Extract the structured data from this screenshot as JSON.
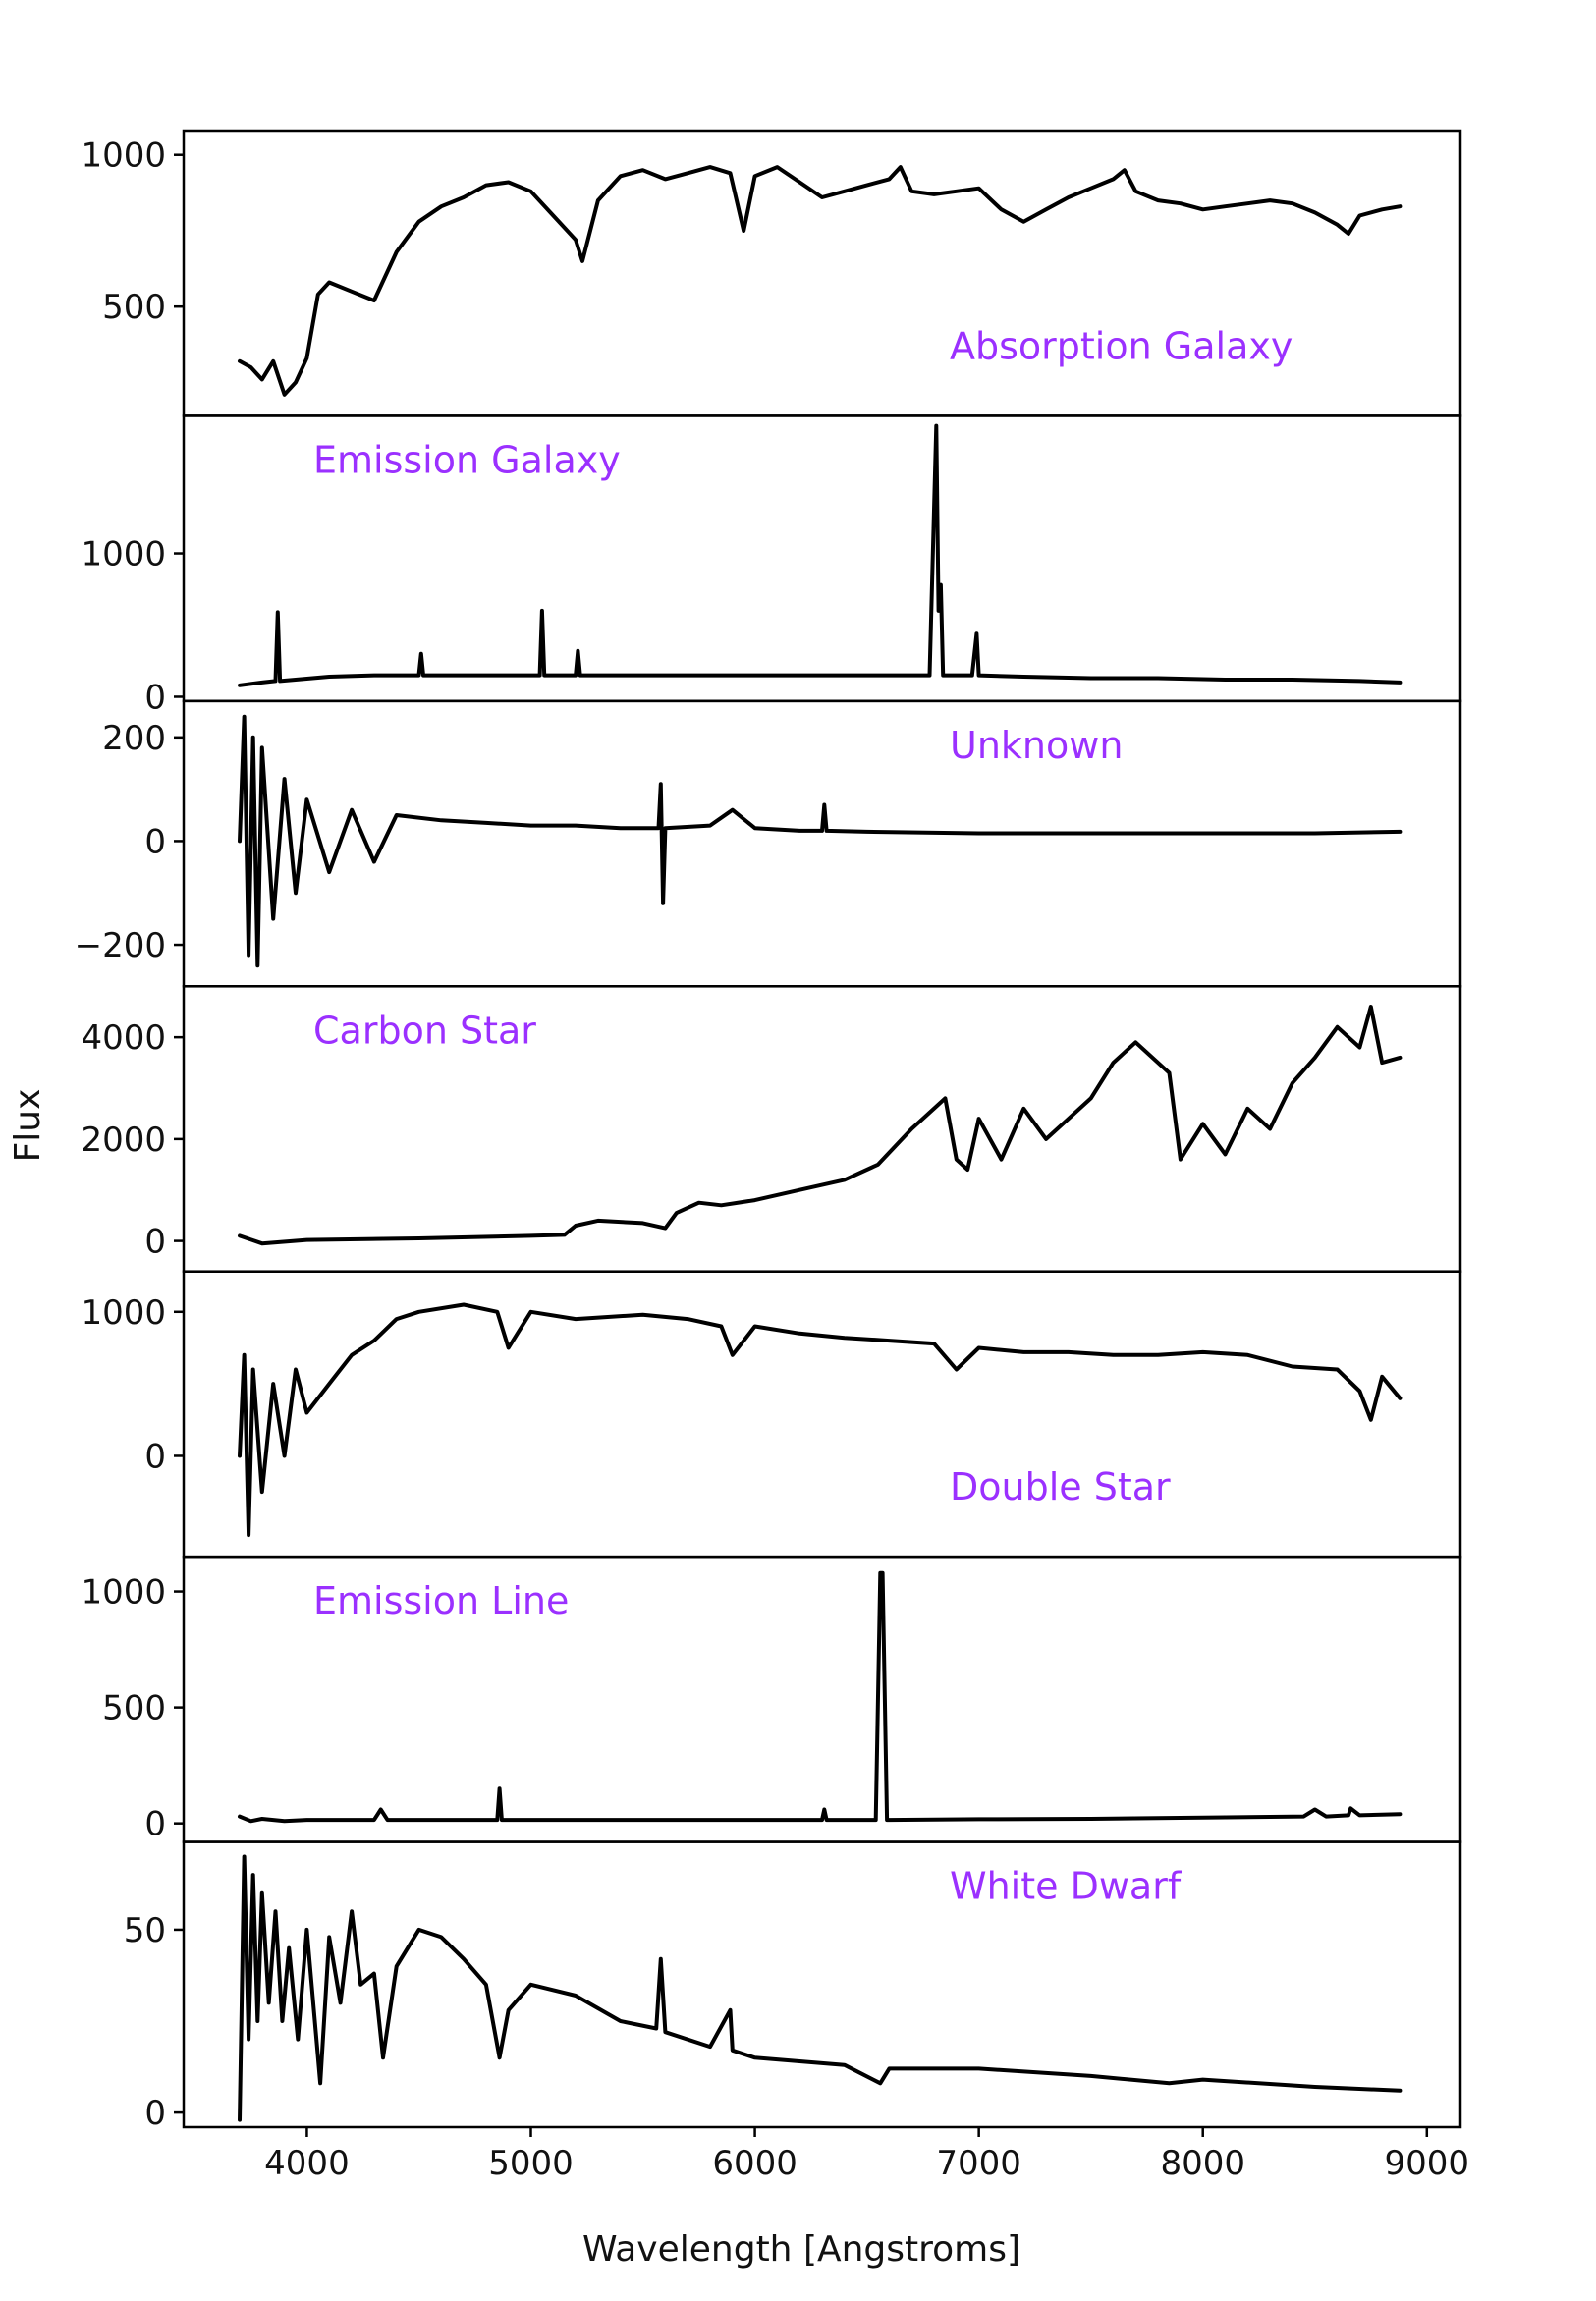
{
  "chart_data": {
    "type": "line",
    "xlabel": "Wavelength [Angstroms]",
    "ylabel": "Flux",
    "xlim": [
      3450,
      9150
    ],
    "xticks": [
      4000,
      5000,
      6000,
      7000,
      8000,
      9000
    ],
    "label_color": "#9b30ff",
    "line_color": "#000000",
    "panels": [
      {
        "name": "Absorption Galaxy",
        "label_position": "bottom-right",
        "ylim": [
          140,
          1080
        ],
        "yticks": [
          500,
          1000
        ],
        "x": [
          3700,
          3750,
          3800,
          3850,
          3900,
          3950,
          4000,
          4050,
          4100,
          4200,
          4300,
          4400,
          4500,
          4600,
          4700,
          4800,
          4900,
          5000,
          5100,
          5200,
          5230,
          5300,
          5400,
          5500,
          5600,
          5700,
          5800,
          5890,
          5950,
          6000,
          6100,
          6200,
          6300,
          6400,
          6500,
          6600,
          6650,
          6700,
          6800,
          6900,
          7000,
          7100,
          7200,
          7300,
          7400,
          7500,
          7600,
          7650,
          7700,
          7800,
          7900,
          8000,
          8100,
          8200,
          8300,
          8400,
          8500,
          8600,
          8650,
          8700,
          8800,
          8880
        ],
        "y": [
          320,
          300,
          260,
          320,
          210,
          250,
          330,
          540,
          580,
          550,
          520,
          680,
          780,
          830,
          860,
          900,
          910,
          880,
          800,
          720,
          650,
          850,
          930,
          950,
          920,
          940,
          960,
          940,
          750,
          930,
          960,
          910,
          860,
          880,
          900,
          920,
          960,
          880,
          870,
          880,
          890,
          820,
          780,
          820,
          860,
          890,
          920,
          950,
          880,
          850,
          840,
          820,
          830,
          840,
          850,
          840,
          810,
          770,
          740,
          800,
          820,
          830
        ]
      },
      {
        "name": "Emission Galaxy",
        "label_position": "top-left",
        "ylim": [
          -30,
          1960
        ],
        "yticks": [
          0,
          1000
        ],
        "x": [
          3700,
          3800,
          3860,
          3870,
          3880,
          3950,
          4100,
          4300,
          4500,
          4510,
          4520,
          4700,
          4900,
          5000,
          5040,
          5050,
          5060,
          5100,
          5200,
          5210,
          5220,
          5400,
          5600,
          5800,
          6000,
          6200,
          6400,
          6600,
          6780,
          6810,
          6820,
          6830,
          6840,
          6850,
          6900,
          6970,
          6990,
          7000,
          7200,
          7500,
          7800,
          8100,
          8400,
          8700,
          8880
        ],
        "y": [
          80,
          100,
          110,
          590,
          110,
          120,
          140,
          150,
          150,
          300,
          150,
          150,
          150,
          150,
          150,
          600,
          150,
          150,
          150,
          320,
          150,
          150,
          150,
          150,
          150,
          150,
          150,
          150,
          150,
          1890,
          600,
          780,
          150,
          150,
          150,
          150,
          440,
          150,
          140,
          130,
          130,
          120,
          120,
          110,
          100
        ]
      },
      {
        "name": "Unknown",
        "label_position": "top-right",
        "ylim": [
          -280,
          270
        ],
        "yticks": [
          -200,
          0,
          200
        ],
        "x": [
          3700,
          3720,
          3740,
          3760,
          3780,
          3800,
          3850,
          3900,
          3950,
          4000,
          4100,
          4200,
          4300,
          4400,
          4600,
          4800,
          5000,
          5200,
          5400,
          5570,
          5580,
          5590,
          5600,
          5800,
          5900,
          6000,
          6200,
          6300,
          6310,
          6320,
          6500,
          7000,
          7500,
          8000,
          8500,
          8880
        ],
        "y": [
          0,
          240,
          -220,
          200,
          -240,
          180,
          -150,
          120,
          -100,
          80,
          -60,
          60,
          -40,
          50,
          40,
          35,
          30,
          30,
          25,
          25,
          110,
          -120,
          25,
          30,
          60,
          25,
          20,
          20,
          70,
          20,
          18,
          15,
          15,
          15,
          15,
          18
        ]
      },
      {
        "name": "Carbon Star",
        "label_position": "top-left",
        "ylim": [
          -600,
          5000
        ],
        "yticks": [
          0,
          2000,
          4000
        ],
        "x": [
          3700,
          3800,
          4000,
          4500,
          5000,
          5150,
          5200,
          5300,
          5500,
          5600,
          5650,
          5750,
          5850,
          6000,
          6200,
          6400,
          6550,
          6700,
          6850,
          6900,
          6950,
          7000,
          7100,
          7200,
          7300,
          7500,
          7600,
          7700,
          7850,
          7900,
          8000,
          8100,
          8200,
          8300,
          8400,
          8500,
          8600,
          8700,
          8750,
          8800,
          8880
        ],
        "y": [
          100,
          -50,
          20,
          50,
          100,
          120,
          300,
          400,
          350,
          250,
          550,
          750,
          700,
          800,
          1000,
          1200,
          1500,
          2200,
          2800,
          1600,
          1400,
          2400,
          1600,
          2600,
          2000,
          2800,
          3500,
          3900,
          3300,
          1600,
          2300,
          1700,
          2600,
          2200,
          3100,
          3600,
          4200,
          3800,
          4600,
          3500,
          3600
        ]
      },
      {
        "name": "Double Star",
        "label_position": "bottom-right",
        "ylim": [
          -700,
          1280
        ],
        "yticks": [
          0,
          1000
        ],
        "x": [
          3700,
          3720,
          3740,
          3760,
          3800,
          3850,
          3900,
          3950,
          4000,
          4100,
          4200,
          4300,
          4400,
          4500,
          4700,
          4850,
          4900,
          5000,
          5200,
          5500,
          5700,
          5850,
          5900,
          6000,
          6200,
          6400,
          6600,
          6800,
          6900,
          7000,
          7200,
          7400,
          7600,
          7800,
          8000,
          8200,
          8400,
          8600,
          8700,
          8750,
          8800,
          8880
        ],
        "y": [
          0,
          700,
          -550,
          600,
          -250,
          500,
          0,
          600,
          300,
          500,
          700,
          800,
          950,
          1000,
          1050,
          1000,
          750,
          1000,
          950,
          980,
          950,
          900,
          700,
          900,
          850,
          820,
          800,
          780,
          600,
          750,
          720,
          720,
          700,
          700,
          720,
          700,
          620,
          600,
          450,
          250,
          550,
          400
        ]
      },
      {
        "name": "Emission Line",
        "label_position": "top-left",
        "ylim": [
          -80,
          1150
        ],
        "yticks": [
          0,
          500,
          1000
        ],
        "x": [
          3700,
          3750,
          3800,
          3900,
          4000,
          4300,
          4330,
          4360,
          4600,
          4850,
          4860,
          4870,
          5100,
          5600,
          6000,
          6300,
          6310,
          6320,
          6540,
          6560,
          6570,
          6590,
          6600,
          7000,
          7500,
          8000,
          8450,
          8500,
          8550,
          8650,
          8660,
          8700,
          8880
        ],
        "y": [
          30,
          10,
          20,
          10,
          15,
          15,
          60,
          15,
          15,
          15,
          150,
          15,
          15,
          15,
          15,
          15,
          60,
          15,
          15,
          1080,
          1080,
          15,
          15,
          18,
          20,
          25,
          30,
          60,
          30,
          35,
          65,
          35,
          40
        ]
      },
      {
        "name": "White Dwarf",
        "label_position": "top-right",
        "ylim": [
          -4,
          74
        ],
        "yticks": [
          0,
          50
        ],
        "x": [
          3700,
          3720,
          3740,
          3760,
          3780,
          3800,
          3830,
          3860,
          3890,
          3920,
          3960,
          4000,
          4060,
          4100,
          4150,
          4200,
          4240,
          4300,
          4340,
          4400,
          4500,
          4600,
          4700,
          4800,
          4860,
          4900,
          5000,
          5200,
          5400,
          5560,
          5580,
          5600,
          5800,
          5890,
          5900,
          6000,
          6200,
          6400,
          6560,
          6600,
          7000,
          7500,
          7850,
          8000,
          8500,
          8880
        ],
        "y": [
          -2,
          70,
          20,
          65,
          25,
          60,
          30,
          55,
          25,
          45,
          20,
          50,
          8,
          48,
          30,
          55,
          35,
          38,
          15,
          40,
          50,
          48,
          42,
          35,
          15,
          28,
          35,
          32,
          25,
          23,
          42,
          22,
          18,
          28,
          17,
          15,
          14,
          13,
          8,
          12,
          12,
          10,
          8,
          9,
          7,
          6
        ]
      }
    ]
  }
}
